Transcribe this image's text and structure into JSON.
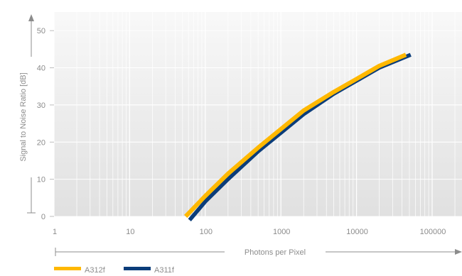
{
  "chart_data": {
    "type": "line",
    "x_scale": "log",
    "xlabel": "Photons per Pixel",
    "ylabel": "Signal to Noise Ratio [dB]",
    "x_ticks": [
      "1",
      "10",
      "100",
      "1000",
      "10000",
      "100000"
    ],
    "y_ticks": [
      "0",
      "10",
      "20",
      "30",
      "40",
      "50"
    ],
    "xlim": [
      1,
      400000
    ],
    "ylim": [
      0,
      55
    ],
    "grid": true,
    "legend_position": "bottom-left",
    "series": [
      {
        "name": "A312f",
        "color": "#ffb800",
        "x": [
          55,
          100,
          200,
          500,
          1000,
          2000,
          5000,
          10000,
          20000,
          45000
        ],
        "y": [
          0,
          5.5,
          11.5,
          18.5,
          23.5,
          28.5,
          33.5,
          37,
          40.5,
          43.5
        ]
      },
      {
        "name": "A311f",
        "color": "#0b3d7a",
        "x": [
          62,
          100,
          200,
          500,
          1000,
          2000,
          5000,
          10000,
          20000,
          52000
        ],
        "y": [
          -1,
          4,
          10,
          17.5,
          22.5,
          27.5,
          33,
          36.5,
          40,
          43.5
        ]
      }
    ]
  }
}
